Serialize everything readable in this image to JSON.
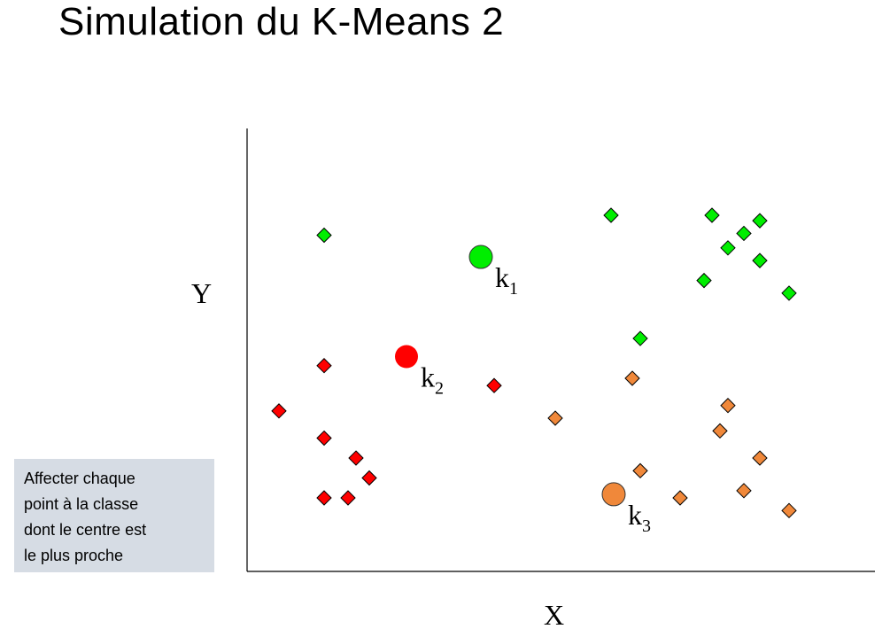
{
  "title": "Simulation du K-Means 2",
  "instruction_lines": [
    "Affecter chaque",
    "point à la classe",
    "dont le centre est",
    "le plus proche"
  ],
  "colors": {
    "green": "#00ee00",
    "red": "#ff0000",
    "orange": "#f0883a",
    "outline": "#000000",
    "box": "#d6dce4"
  },
  "chart_data": {
    "type": "scatter",
    "title": "",
    "xlabel": "X",
    "ylabel": "Y",
    "xlim": [
      0,
      100
    ],
    "ylim": [
      0,
      100
    ],
    "grid": false,
    "series": [
      {
        "cluster": "k1",
        "color": "green",
        "marker": "diamond",
        "points": [
          [
            11.5,
            83.5
          ],
          [
            65.5,
            89
          ],
          [
            84.5,
            89
          ],
          [
            93.5,
            87.5
          ],
          [
            90.5,
            84
          ],
          [
            87.5,
            80
          ],
          [
            93.5,
            76.5
          ],
          [
            83,
            71
          ],
          [
            99,
            67.5
          ],
          [
            71,
            55
          ]
        ]
      },
      {
        "cluster": "k2",
        "color": "red",
        "marker": "diamond",
        "points": [
          [
            11.5,
            47.5
          ],
          [
            43.5,
            42
          ],
          [
            3,
            35
          ],
          [
            11.5,
            27.5
          ],
          [
            17.5,
            22
          ],
          [
            20,
            16.5
          ],
          [
            11.5,
            11
          ],
          [
            16,
            11
          ]
        ]
      },
      {
        "cluster": "k3",
        "color": "orange",
        "marker": "diamond",
        "points": [
          [
            69.5,
            44
          ],
          [
            87.5,
            36.5
          ],
          [
            55,
            33
          ],
          [
            86,
            29.5
          ],
          [
            93.5,
            22
          ],
          [
            71,
            18.5
          ],
          [
            78.5,
            11
          ],
          [
            90.5,
            13
          ],
          [
            99,
            7.5
          ]
        ]
      }
    ],
    "centroids": [
      {
        "name": "k",
        "sub": "1",
        "color": "green",
        "x": 41,
        "y": 77.5
      },
      {
        "name": "k",
        "sub": "2",
        "color": "red",
        "x": 27,
        "y": 50
      },
      {
        "name": "k",
        "sub": "3",
        "color": "orange",
        "x": 66,
        "y": 12
      }
    ]
  }
}
